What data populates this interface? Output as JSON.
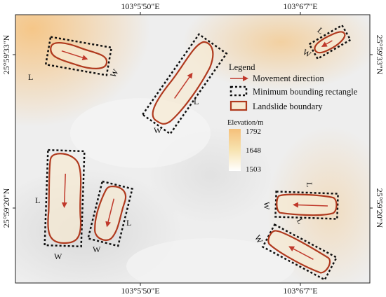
{
  "map": {
    "coords": {
      "top_left": "103°5'50\"E",
      "top_right": "103°6'7\"E",
      "bottom_left": "103°5'50\"E",
      "bottom_right": "103°6'7\"E",
      "left_top": "25°59'33\"N",
      "left_bottom": "25°59'20\"N",
      "right_top": "25°59'33\"N",
      "right_bottom": "25°59'20\"N"
    },
    "legend": {
      "title": "Legend",
      "items": [
        {
          "label": "Movement direction",
          "symbol": "arrow",
          "color": "#c0392b"
        },
        {
          "label": "Minimum bounding rectangle",
          "symbol": "dashed-rect",
          "color": "#111111"
        },
        {
          "label": "Landslide boundary",
          "symbol": "outlined-rect",
          "color": "#b03a1e"
        }
      ],
      "elevation_title": "Elevation/m",
      "elevation_max": "1792",
      "elevation_mid": "1648",
      "elevation_min": "1503",
      "ramp_colors": [
        "#f5c07a",
        "#f7e3b0",
        "#ffffff"
      ]
    },
    "landslides": [
      {
        "id": "ls-1",
        "length_label": "L",
        "width_label": "W"
      },
      {
        "id": "ls-2",
        "length_label": "L",
        "width_label": "W"
      },
      {
        "id": "ls-3",
        "length_label": "L",
        "width_label": "W"
      },
      {
        "id": "ls-4",
        "length_label": "L",
        "width_label": "W"
      },
      {
        "id": "ls-5",
        "length_label": "L",
        "width_label": "W"
      },
      {
        "id": "ls-6",
        "length_label": "L",
        "width_label": "W"
      },
      {
        "id": "ls-7",
        "length_label": "L",
        "width_label": "W"
      }
    ]
  }
}
